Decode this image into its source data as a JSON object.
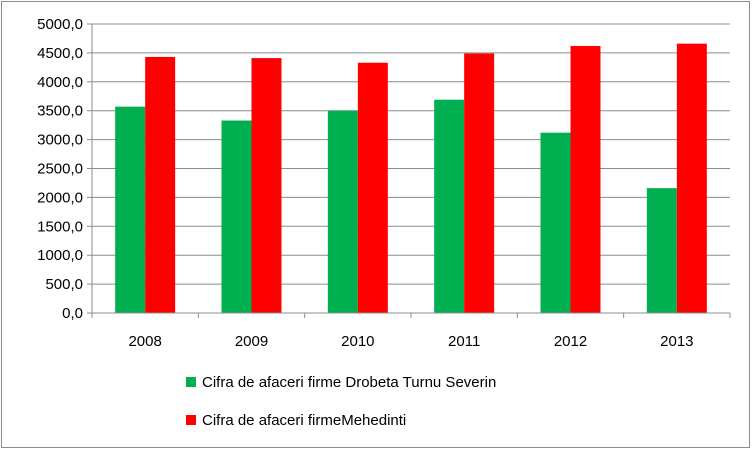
{
  "chart_data": {
    "type": "bar",
    "title": "",
    "xlabel": "",
    "ylabel": "",
    "categories": [
      "2008",
      "2009",
      "2010",
      "2011",
      "2012",
      "2013"
    ],
    "series": [
      {
        "name": "Cifra de afaceri firme Drobeta Turnu Severin",
        "color": "#00b050",
        "values": [
          3570,
          3330,
          3500,
          3690,
          3120,
          2160
        ]
      },
      {
        "name": "Cifra de afaceri firmeMehedinti",
        "color": "#ff0000",
        "values": [
          4430,
          4410,
          4330,
          4490,
          4620,
          4660
        ]
      }
    ],
    "ylim": [
      0,
      5000
    ],
    "yticks": [
      "0,0",
      "500,0",
      "1000,0",
      "1500,0",
      "2000,0",
      "2500,0",
      "3000,0",
      "3500,0",
      "4000,0",
      "4500,0",
      "5000,0"
    ],
    "grid": true,
    "legend_position": "bottom"
  }
}
